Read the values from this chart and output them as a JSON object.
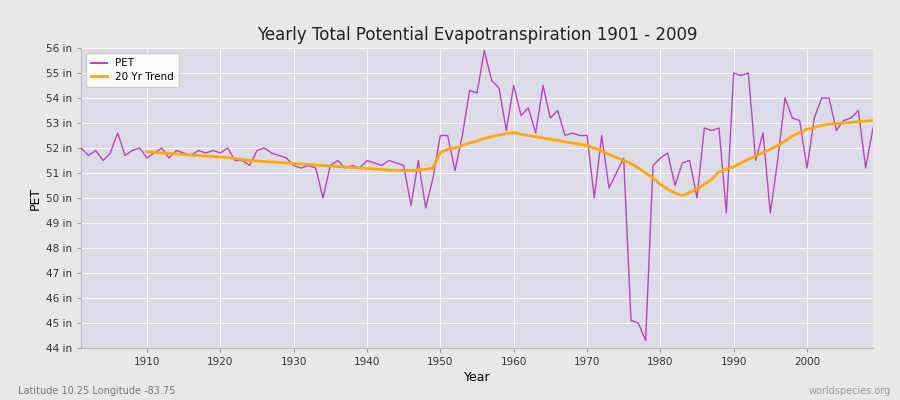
{
  "title": "Yearly Total Potential Evapotranspiration 1901 - 2009",
  "xlabel": "Year",
  "ylabel": "PET",
  "subtitle_left": "Latitude 10.25 Longitude -83.75",
  "subtitle_right": "worldspecies.org",
  "ylim": [
    44,
    56
  ],
  "ytick_values": [
    44,
    45,
    46,
    47,
    48,
    49,
    50,
    51,
    52,
    53,
    54,
    55,
    56
  ],
  "ytick_labels": [
    "44 in",
    "45 in",
    "46 in",
    "47 in",
    "48 in",
    "49 in",
    "50 in",
    "51 in",
    "52 in",
    "53 in",
    "54 in",
    "55 in",
    "56 in"
  ],
  "xtick_values": [
    1910,
    1920,
    1930,
    1940,
    1950,
    1960,
    1970,
    1980,
    1990,
    2000
  ],
  "pet_color": "#bb44bb",
  "trend_color": "#ffaa00",
  "fig_bg": "#e8e8e8",
  "plot_bg": "#dcdce8",
  "grid_color": "#ffffff",
  "xlim": [
    1901,
    2009
  ],
  "years": [
    1901,
    1902,
    1903,
    1904,
    1905,
    1906,
    1907,
    1908,
    1909,
    1910,
    1911,
    1912,
    1913,
    1914,
    1915,
    1916,
    1917,
    1918,
    1919,
    1920,
    1921,
    1922,
    1923,
    1924,
    1925,
    1926,
    1927,
    1928,
    1929,
    1930,
    1931,
    1932,
    1933,
    1934,
    1935,
    1936,
    1937,
    1938,
    1939,
    1940,
    1941,
    1942,
    1943,
    1944,
    1945,
    1946,
    1947,
    1948,
    1949,
    1950,
    1951,
    1952,
    1953,
    1954,
    1955,
    1956,
    1957,
    1958,
    1959,
    1960,
    1961,
    1962,
    1963,
    1964,
    1965,
    1966,
    1967,
    1968,
    1969,
    1970,
    1971,
    1972,
    1973,
    1974,
    1975,
    1976,
    1977,
    1978,
    1979,
    1980,
    1981,
    1982,
    1983,
    1984,
    1985,
    1986,
    1987,
    1988,
    1989,
    1990,
    1991,
    1992,
    1993,
    1994,
    1995,
    1996,
    1997,
    1998,
    1999,
    2000,
    2001,
    2002,
    2003,
    2004,
    2005,
    2006,
    2007,
    2008,
    2009
  ],
  "pet_values": [
    52.0,
    51.7,
    51.9,
    51.5,
    51.8,
    52.6,
    51.7,
    51.9,
    52.0,
    51.6,
    51.8,
    52.0,
    51.6,
    51.9,
    51.8,
    51.7,
    51.9,
    51.8,
    51.9,
    51.8,
    52.0,
    51.5,
    51.5,
    51.3,
    51.9,
    52.0,
    51.8,
    51.7,
    51.6,
    51.3,
    51.2,
    51.3,
    51.2,
    50.0,
    51.3,
    51.5,
    51.2,
    51.3,
    51.2,
    51.5,
    51.4,
    51.3,
    51.5,
    51.4,
    51.3,
    49.7,
    51.5,
    49.6,
    50.8,
    52.5,
    52.5,
    51.1,
    52.5,
    54.3,
    54.2,
    55.9,
    54.7,
    54.4,
    52.7,
    54.5,
    53.3,
    53.6,
    52.6,
    54.5,
    53.2,
    53.5,
    52.5,
    52.6,
    52.5,
    52.5,
    50.0,
    52.5,
    50.4,
    51.0,
    51.6,
    45.1,
    45.0,
    44.3,
    51.3,
    51.6,
    51.8,
    50.5,
    51.4,
    51.5,
    50.0,
    52.8,
    52.7,
    52.8,
    49.4,
    55.0,
    54.9,
    55.0,
    51.5,
    52.6,
    49.4,
    51.5,
    54.0,
    53.2,
    53.1,
    51.2,
    53.2,
    54.0,
    54.0,
    52.7,
    53.1,
    53.2,
    53.5,
    51.2,
    52.8
  ],
  "trend_values": [
    null,
    null,
    null,
    null,
    null,
    null,
    null,
    null,
    null,
    51.85,
    51.82,
    51.8,
    51.78,
    51.76,
    51.74,
    51.72,
    51.7,
    51.68,
    51.66,
    51.64,
    51.62,
    51.58,
    51.54,
    51.5,
    51.48,
    51.46,
    51.44,
    51.42,
    51.4,
    51.38,
    51.36,
    51.34,
    51.32,
    51.3,
    51.28,
    51.26,
    51.24,
    51.22,
    51.2,
    51.18,
    51.16,
    51.14,
    51.12,
    51.1,
    51.1,
    51.1,
    51.12,
    51.15,
    51.2,
    51.82,
    51.95,
    52.0,
    52.1,
    52.2,
    52.28,
    52.38,
    52.45,
    52.52,
    52.58,
    52.62,
    52.55,
    52.5,
    52.45,
    52.4,
    52.35,
    52.3,
    52.25,
    52.2,
    52.15,
    52.1,
    52.0,
    51.88,
    51.75,
    51.62,
    51.5,
    51.38,
    51.2,
    51.0,
    50.8,
    50.55,
    50.35,
    50.2,
    50.1,
    50.22,
    50.35,
    50.55,
    50.75,
    51.05,
    51.15,
    51.25,
    51.4,
    51.55,
    51.68,
    51.82,
    51.95,
    52.1,
    52.28,
    52.48,
    52.62,
    52.75,
    52.82,
    52.9,
    52.95,
    52.98,
    53.0,
    53.02,
    53.05,
    53.08,
    53.1
  ]
}
